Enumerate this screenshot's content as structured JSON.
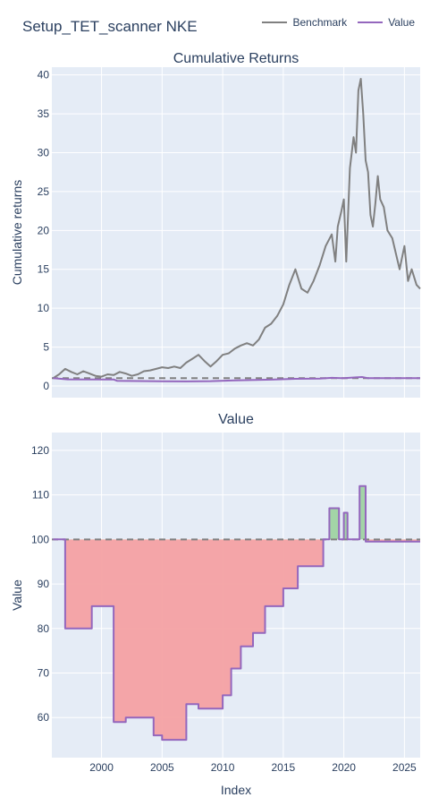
{
  "page": {
    "title": "Setup_TET_scanner NKE"
  },
  "legend": [
    {
      "label": "Benchmark",
      "color": "#808080"
    },
    {
      "label": "Value",
      "color": "#9467bd"
    }
  ],
  "colors": {
    "plot_bg": "#e5ecf6",
    "grid": "#ffffff",
    "benchmark": "#808080",
    "value": "#9467bd",
    "loss_fill": "#f4a1a3",
    "gain_fill": "#9fd3a2",
    "baseline": "#808080"
  },
  "chart_data": [
    {
      "type": "line",
      "title": "Cumulative Returns",
      "ylabel": "Cumulative returns",
      "xlabel": "",
      "xlim": [
        1995.9,
        2026.3
      ],
      "ylim": [
        -1.5,
        41
      ],
      "yticks": [
        0,
        5,
        10,
        15,
        20,
        25,
        30,
        35,
        40
      ],
      "grid": true,
      "baseline": 1,
      "series": [
        {
          "name": "Benchmark",
          "x": [
            1996.0,
            1996.5,
            1997.0,
            1997.5,
            1998.0,
            1998.5,
            1999.0,
            1999.5,
            2000.0,
            2000.5,
            2001.0,
            2001.5,
            2002.0,
            2002.5,
            2003.0,
            2003.5,
            2004.0,
            2004.5,
            2005.0,
            2005.5,
            2006.0,
            2006.5,
            2007.0,
            2007.5,
            2008.0,
            2008.5,
            2009.0,
            2009.5,
            2010.0,
            2010.5,
            2011.0,
            2011.5,
            2012.0,
            2012.5,
            2013.0,
            2013.5,
            2014.0,
            2014.5,
            2015.0,
            2015.5,
            2016.0,
            2016.5,
            2017.0,
            2017.5,
            2018.0,
            2018.5,
            2019.0,
            2019.3,
            2019.5,
            2019.8,
            2020.0,
            2020.2,
            2020.5,
            2020.8,
            2021.0,
            2021.2,
            2021.4,
            2021.6,
            2021.8,
            2022.0,
            2022.2,
            2022.4,
            2022.6,
            2022.8,
            2023.0,
            2023.3,
            2023.6,
            2024.0,
            2024.3,
            2024.6,
            2025.0,
            2025.3,
            2025.6,
            2026.0,
            2026.3
          ],
          "values": [
            1.0,
            1.5,
            2.2,
            1.8,
            1.5,
            1.9,
            1.6,
            1.3,
            1.2,
            1.5,
            1.4,
            1.8,
            1.6,
            1.3,
            1.5,
            1.9,
            2.0,
            2.2,
            2.4,
            2.3,
            2.5,
            2.3,
            3.0,
            3.5,
            4.0,
            3.2,
            2.5,
            3.2,
            4.0,
            4.2,
            4.8,
            5.2,
            5.5,
            5.2,
            6.0,
            7.5,
            8.0,
            9.0,
            10.5,
            13.0,
            15.0,
            12.5,
            12.0,
            13.5,
            15.5,
            18.0,
            19.5,
            16.0,
            20.5,
            22.5,
            24.0,
            16.0,
            28.0,
            32.0,
            30.0,
            38.0,
            39.5,
            35.0,
            29.0,
            27.5,
            22.0,
            20.5,
            23.5,
            27.0,
            24.0,
            23.0,
            20.0,
            19.0,
            17.0,
            15.0,
            18.0,
            13.5,
            15.0,
            13.0,
            12.5
          ]
        },
        {
          "name": "Value",
          "x": [
            1996.0,
            1997.2,
            2001.0,
            2001.3,
            2005.0,
            2007.0,
            2009.0,
            2011.0,
            2014.0,
            2016.0,
            2018.0,
            2019.0,
            2020.0,
            2021.0,
            2021.5,
            2022.0,
            2026.3
          ],
          "values": [
            1.0,
            0.85,
            0.84,
            0.65,
            0.6,
            0.58,
            0.62,
            0.72,
            0.82,
            0.92,
            0.95,
            1.05,
            1.0,
            1.1,
            1.15,
            1.0,
            1.0
          ]
        }
      ]
    },
    {
      "type": "area",
      "title": "Value",
      "ylabel": "Value",
      "xlabel": "Index",
      "xlim": [
        1995.9,
        2026.3
      ],
      "ylim": [
        51,
        124
      ],
      "yticks": [
        60,
        70,
        80,
        90,
        100,
        110,
        120
      ],
      "xticks": [
        2000,
        2005,
        2010,
        2015,
        2020,
        2025
      ],
      "grid": true,
      "baseline": 100,
      "series": [
        {
          "name": "Value",
          "x": [
            1996.0,
            1997.0,
            1997.0,
            1999.2,
            1999.2,
            2000.0,
            2000.0,
            2000.5,
            2001.0,
            2001.0,
            2002.0,
            2002.0,
            2004.3,
            2004.3,
            2005.0,
            2005.0,
            2007.0,
            2007.0,
            2008.0,
            2008.0,
            2010.0,
            2010.0,
            2010.7,
            2010.7,
            2011.5,
            2011.5,
            2012.5,
            2012.5,
            2013.5,
            2013.5,
            2014.5,
            2014.5,
            2015.0,
            2015.0,
            2016.2,
            2016.2,
            2018.3,
            2018.3,
            2018.8,
            2018.8,
            2019.6,
            2019.6,
            2020.0,
            2020.0,
            2020.3,
            2020.3,
            2021.3,
            2021.3,
            2021.8,
            2021.8,
            2026.3
          ],
          "values": [
            100,
            100,
            80,
            80,
            85,
            85,
            85,
            85,
            85,
            59,
            59,
            60,
            60,
            56,
            56,
            55,
            55,
            63,
            63,
            62,
            62,
            65,
            65,
            71,
            71,
            76,
            76,
            79,
            79,
            85,
            85,
            85,
            85,
            89,
            89,
            94,
            94,
            100,
            100,
            107,
            107,
            100,
            100,
            106,
            106,
            100,
            100,
            112,
            112,
            99.5,
            99.5
          ]
        }
      ]
    }
  ]
}
